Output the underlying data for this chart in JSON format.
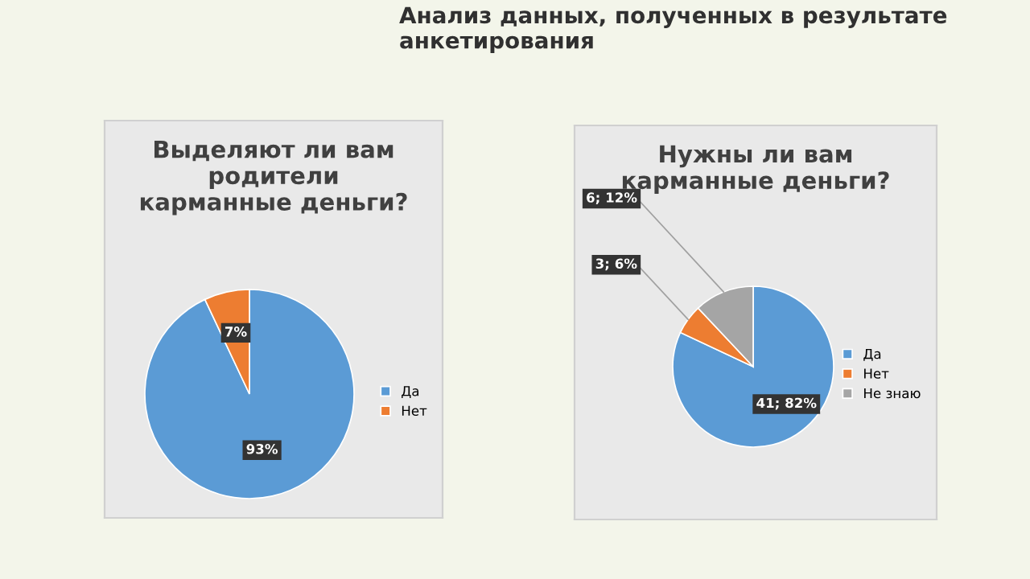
{
  "chart_data": [
    {
      "type": "pie",
      "title": "Выделяют ли вам\nродители\nкарманные деньги?",
      "annotations": [
        "Анализ данных, полученных в результате\nанкетирования"
      ],
      "categories": [
        "Да",
        "Нет"
      ],
      "values": [
        93,
        7
      ],
      "colors": [
        "#5b9bd5",
        "#ed7d31"
      ],
      "value_labels": [
        "93%",
        "7%"
      ],
      "legend": "right"
    },
    {
      "type": "pie",
      "title": "Нужны ли вам\nкарманные деньги?",
      "categories": [
        "Да",
        "Нет",
        "Не знаю"
      ],
      "values": [
        41,
        3,
        6
      ],
      "colors": [
        "#5b9bd5",
        "#ed7d31",
        "#a5a5a5"
      ],
      "value_labels": [
        "41; 82%",
        "3; 6%",
        "6; 12%"
      ],
      "legend": "right"
    }
  ]
}
